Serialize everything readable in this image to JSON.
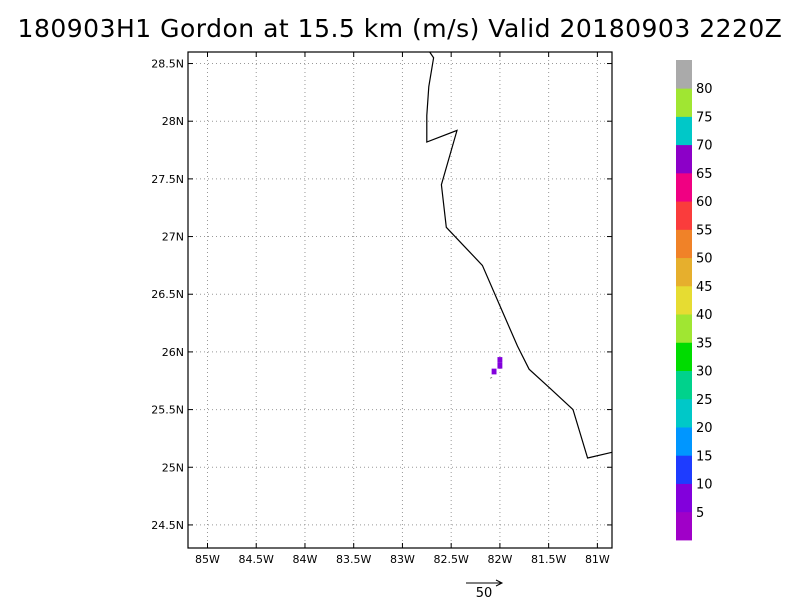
{
  "title": "180903H1 Gordon at 15.5 km (m/s) Valid 20180903 2220Z",
  "map": {
    "lon_range": [
      -85.2,
      -80.85
    ],
    "lat_range": [
      24.3,
      28.6
    ],
    "lat_ticks": [
      {
        "value": 28.5,
        "label": "28.5N"
      },
      {
        "value": 28.0,
        "label": "28N"
      },
      {
        "value": 27.5,
        "label": "27.5N"
      },
      {
        "value": 27.0,
        "label": "27N"
      },
      {
        "value": 26.5,
        "label": "26.5N"
      },
      {
        "value": 26.0,
        "label": "26N"
      },
      {
        "value": 25.5,
        "label": "25.5N"
      },
      {
        "value": 25.0,
        "label": "25N"
      },
      {
        "value": 24.5,
        "label": "24.5N"
      }
    ],
    "lon_ticks": [
      {
        "value": -85.0,
        "label": "85W"
      },
      {
        "value": -84.5,
        "label": "84.5W"
      },
      {
        "value": -84.0,
        "label": "84W"
      },
      {
        "value": -83.5,
        "label": "83.5W"
      },
      {
        "value": -83.0,
        "label": "83W"
      },
      {
        "value": -82.5,
        "label": "82.5W"
      },
      {
        "value": -82.0,
        "label": "82W"
      },
      {
        "value": -81.5,
        "label": "81.5W"
      },
      {
        "value": -81.0,
        "label": "81W"
      }
    ],
    "grid": true,
    "coastline": [
      [
        -82.72,
        28.6
      ],
      [
        -82.68,
        28.55
      ],
      [
        -82.73,
        28.3
      ],
      [
        -82.75,
        28.05
      ],
      [
        -82.75,
        27.82
      ],
      [
        -82.44,
        27.92
      ],
      [
        -82.6,
        27.45
      ],
      [
        -82.55,
        27.08
      ],
      [
        -82.37,
        26.92
      ],
      [
        -82.18,
        26.75
      ],
      [
        -82.0,
        26.4
      ],
      [
        -81.82,
        26.05
      ],
      [
        -81.7,
        25.85
      ],
      [
        -81.48,
        25.68
      ],
      [
        -81.25,
        25.5
      ],
      [
        -81.1,
        25.08
      ],
      [
        -80.85,
        25.13
      ]
    ],
    "wind_cells": [
      {
        "lon": -82.0,
        "lat": 25.93,
        "value": 8
      },
      {
        "lon": -82.0,
        "lat": 25.88,
        "value": 8
      },
      {
        "lon": -82.06,
        "lat": 25.83,
        "value": 8
      }
    ],
    "vector_marks": [
      {
        "lon": -82.08,
        "lat": 25.78,
        "u": -2,
        "v": -1
      }
    ]
  },
  "colorbar": {
    "colors": [
      "#a000c8",
      "#8200dc",
      "#1e3cff",
      "#0096ff",
      "#00c8c8",
      "#00d28c",
      "#00dc00",
      "#a0e632",
      "#e6dc32",
      "#e6af2d",
      "#f08228",
      "#fa3c3c",
      "#f00082",
      "#8c00c8",
      "#00c8c8",
      "#a0e632",
      "#aaaaaa"
    ],
    "labels": [
      "5",
      "10",
      "15",
      "20",
      "25",
      "30",
      "35",
      "40",
      "45",
      "50",
      "55",
      "60",
      "65",
      "70",
      "75",
      "80"
    ]
  },
  "reference_vector": {
    "label": "50",
    "value": 50
  }
}
